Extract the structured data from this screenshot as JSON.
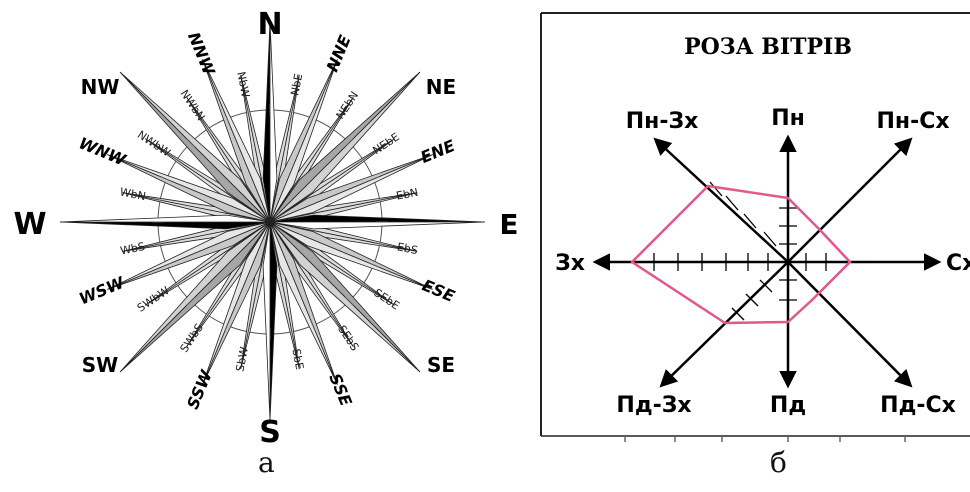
{
  "compass_rose": {
    "cardinal": {
      "N": "N",
      "E": "E",
      "S": "S",
      "W": "W"
    },
    "intercardinal": {
      "NE": "NE",
      "SE": "SE",
      "SW": "SW",
      "NW": "NW"
    },
    "secondary": [
      "NNE",
      "ENE",
      "ESE",
      "SSE",
      "SSW",
      "WSW",
      "WNW",
      "NNW"
    ],
    "by_points": [
      "NbE",
      "NEbN",
      "NEbE",
      "EbN",
      "EbS",
      "SEbE",
      "SEbS",
      "SbE",
      "SbW",
      "SWbS",
      "SWbW",
      "WbS",
      "WbN",
      "NWbW",
      "NWbN",
      "NbW"
    ],
    "colors": {
      "cardinal_dark": "#000000",
      "cardinal_light": "#ffffff",
      "intercardinal": "#a6a6a6",
      "secondary": "#c8c8c8",
      "minor": "#dcdcdc"
    }
  },
  "wind_rose": {
    "title": "РОЗА ВІТРІВ",
    "directions": {
      "n": "Пн",
      "ne": "Пн-Сх",
      "e": "Сх",
      "se": "Пд-Сх",
      "s": "Пд",
      "sw": "Пд-Зх",
      "w": "Зх",
      "nw": "Пн-Зх"
    },
    "ticks_per_axis": 6,
    "polygon_color": "#e3578c"
  },
  "captions": {
    "a": "а",
    "b": "б"
  }
}
